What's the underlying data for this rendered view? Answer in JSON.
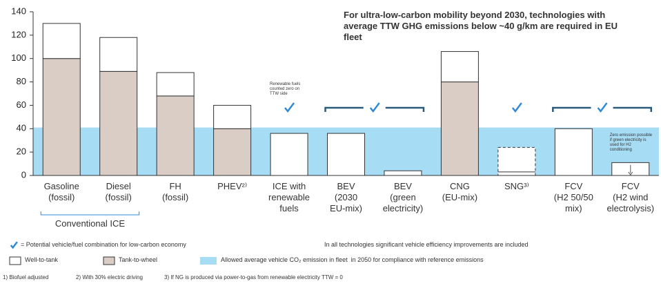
{
  "chart_data": {
    "type": "stacked_bar",
    "title": "For ultra-low-carbon mobility beyond 2030, technologies with average TTW GHG emissions below ~40 g/km are required in EU fleet",
    "categories": [
      "Gasoline\n(fossil)",
      "Diesel\n(fossil)",
      "FH\n(fossil)",
      "PHEV²⁾",
      "ICE with\nrenewable\nfuels",
      "BEV\n(2030\nEU-mix)",
      "BEV\n(green\nelectricity)",
      "CNG\n(EU-mix)",
      "SNG³⁾",
      "FCV\n(H2 50/50\nmix)",
      "FCV\n(H2 wind\nelectrolysis)"
    ],
    "series": [
      {
        "name": "Well-to-tank",
        "color": "#ffffff",
        "values": [
          30,
          29,
          20,
          20,
          36,
          36,
          4,
          26,
          24,
          40,
          11
        ],
        "dashed": [
          false,
          false,
          false,
          false,
          false,
          false,
          false,
          false,
          true,
          false,
          false
        ]
      },
      {
        "name": "Tank-to-wheel",
        "color": "#d9cdc6",
        "values": [
          100,
          89,
          68,
          40,
          0,
          0,
          0,
          80,
          0,
          0,
          0
        ]
      }
    ],
    "band": {
      "name": "Allowed average vehicle CO₂ emission in fleet  in 2050 for compliance with reference emissions",
      "value": 41,
      "color": "#a7dcf5"
    },
    "ylim": [
      0,
      140
    ],
    "yticks": [
      0,
      20,
      40,
      60,
      80,
      100,
      120,
      140
    ],
    "group": {
      "label": "Conventional ICE",
      "categories": [
        0,
        1
      ]
    },
    "checks": [
      [
        4
      ],
      [
        5,
        6
      ],
      [
        8
      ],
      [
        9,
        10
      ]
    ],
    "check_color": "#2e8ad8",
    "check_legend": "= Potential vehicle/fuel combination for low-carbon economy",
    "note": "In all technologies significant vehicle efficiency improvements are included",
    "annotations": [
      "Renewable fuels counted zero on TTW side",
      "Zero emission possible if green electricity is used for H2 conditioning"
    ],
    "footnotes": [
      "1) Biofuel adjusted",
      "2) With 30% electric driving",
      "3) If NG is produced via power-to-gas from renewable electricity TTW = 0"
    ]
  }
}
